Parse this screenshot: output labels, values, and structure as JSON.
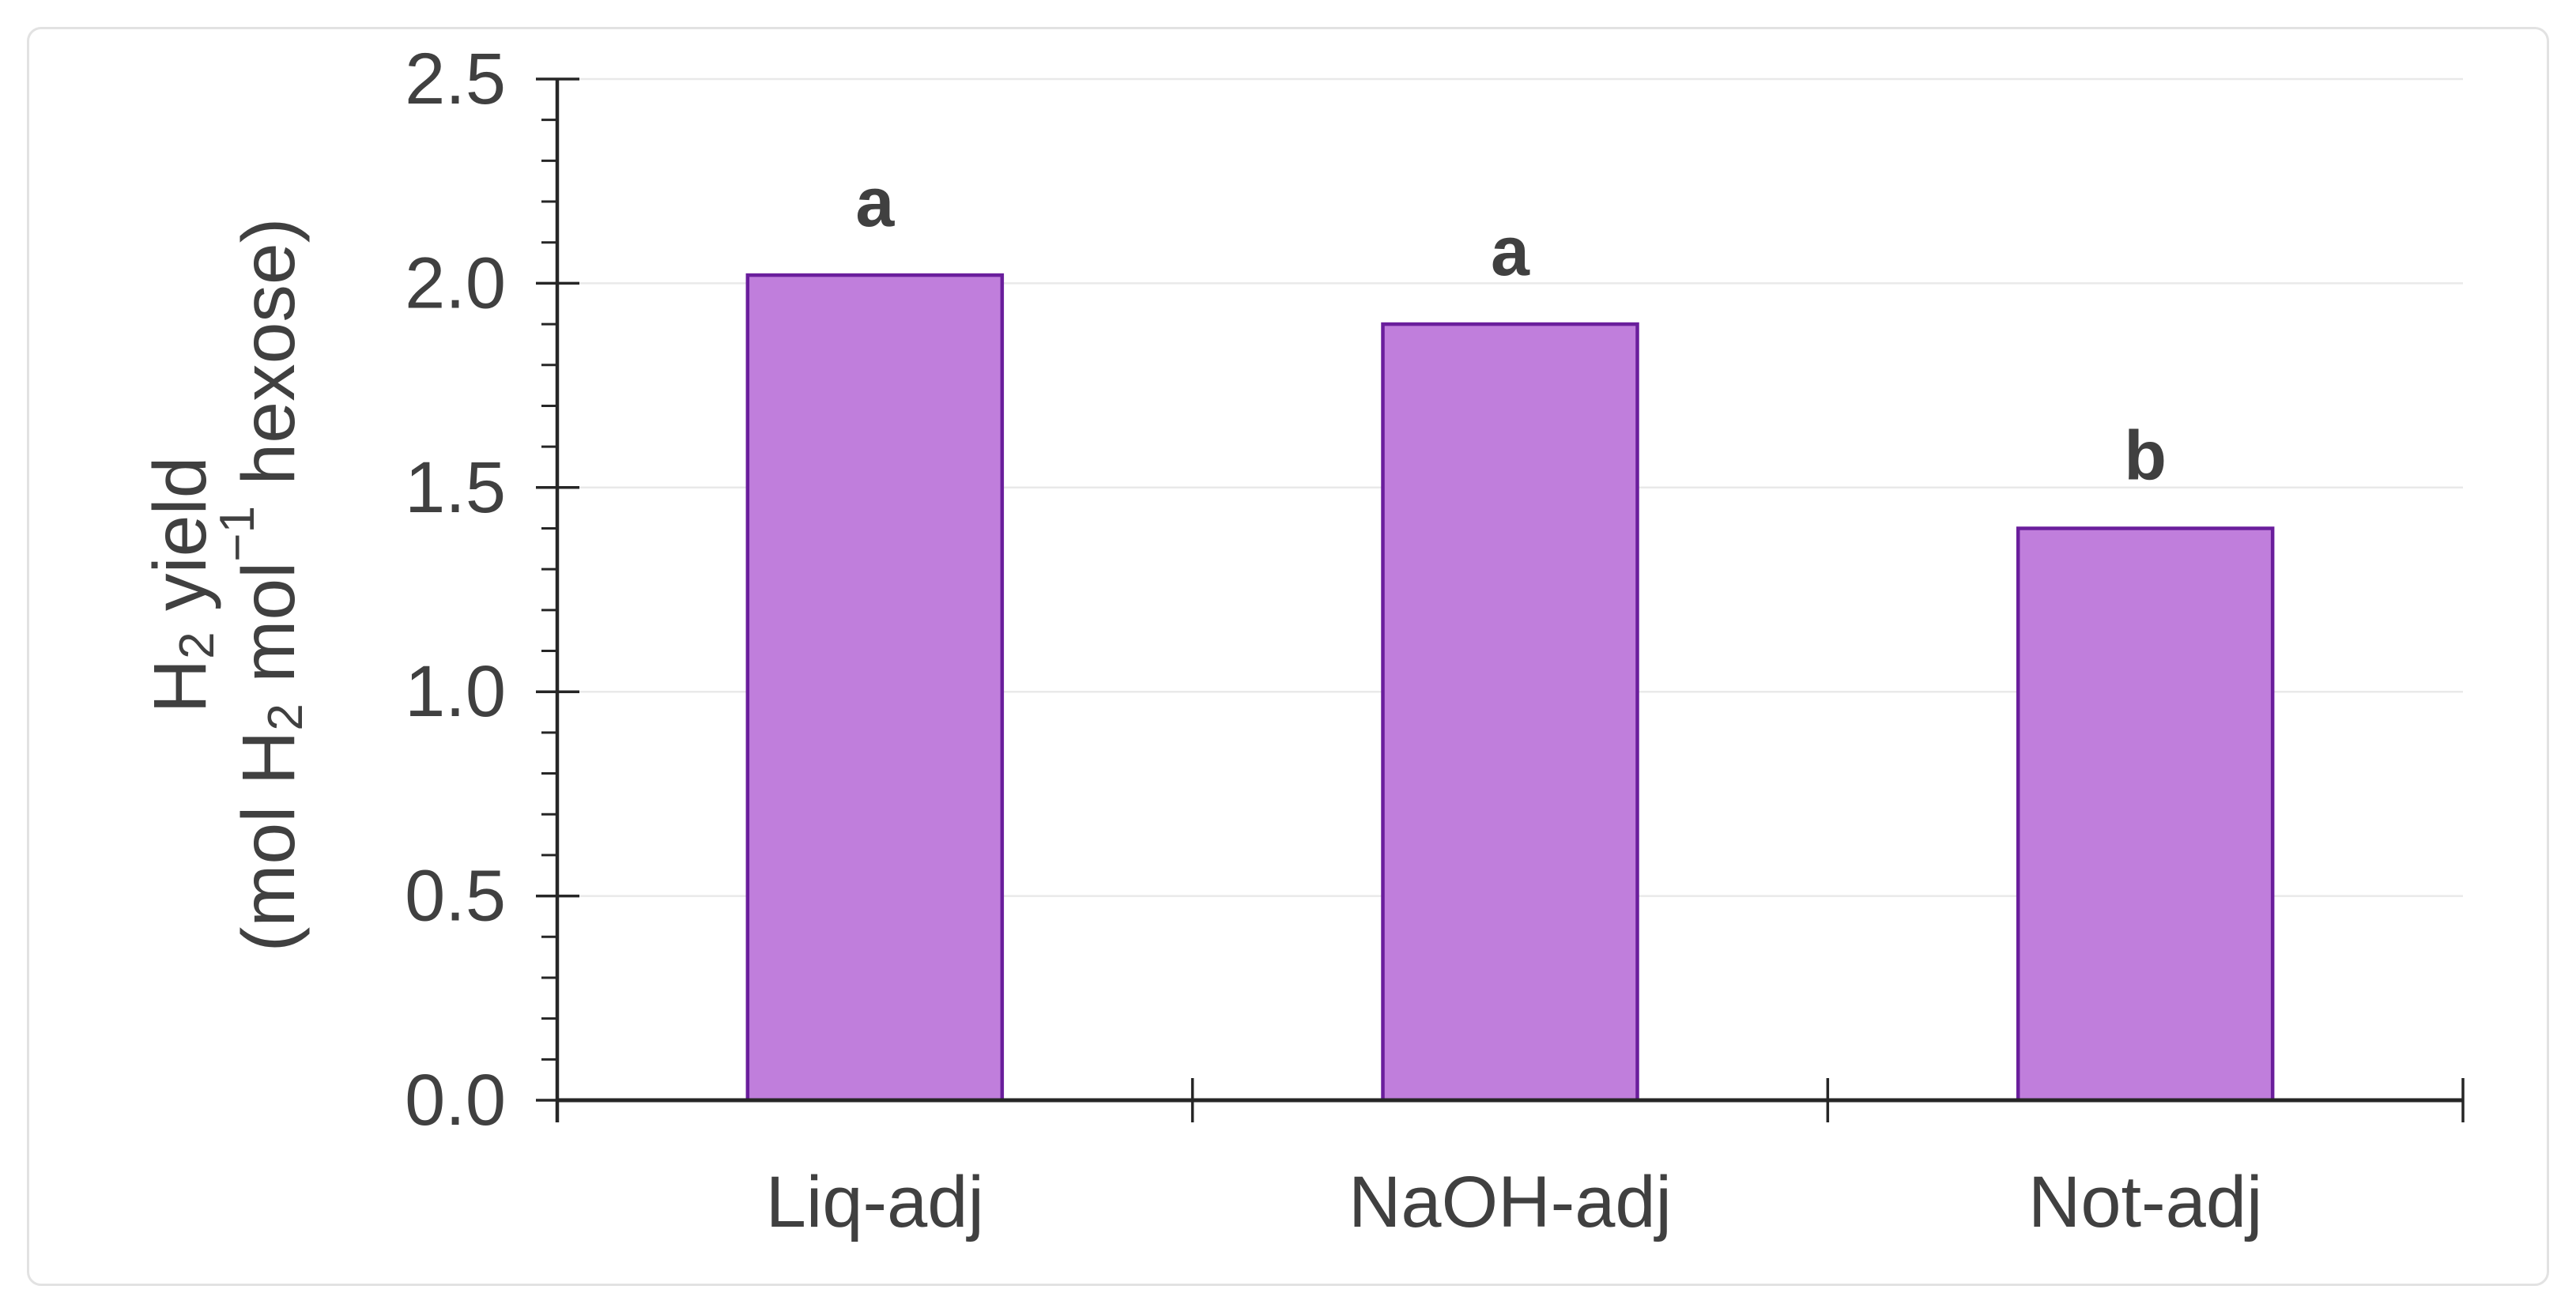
{
  "figure": {
    "card_border_color": "#E2E2E2",
    "background_color": "#FFFFFF"
  },
  "chart_data": {
    "type": "bar",
    "categories": [
      "Liq-adj",
      "NaOH-adj",
      "Not-adj"
    ],
    "values": [
      2.02,
      1.9,
      1.4
    ],
    "bar_labels": [
      "a",
      "a",
      "b"
    ],
    "title": "",
    "xlabel": "",
    "ylabel_line1_runs": [
      {
        "t": "H"
      },
      {
        "t": "2",
        "s": "sub"
      },
      {
        "t": " yield"
      }
    ],
    "ylabel_line2_runs": [
      {
        "t": "(mol H"
      },
      {
        "t": "2",
        "s": "sub"
      },
      {
        "t": " mol"
      },
      {
        "t": "−1",
        "s": "sup"
      },
      {
        "t": " hexose)"
      }
    ],
    "ylabel_plain": "H2 yield (mol H2 mol-1 hexose)",
    "ylim": [
      0.0,
      2.5
    ],
    "yticks": [
      {
        "v": 0.0,
        "label": "0.0"
      },
      {
        "v": 0.5,
        "label": "0.5"
      },
      {
        "v": 1.0,
        "label": "1.0"
      },
      {
        "v": 1.5,
        "label": "1.5"
      },
      {
        "v": 2.0,
        "label": "2.0"
      },
      {
        "v": 2.5,
        "label": "2.5"
      }
    ],
    "minor_tick_step": 0.1,
    "grid": "horizontal-major-only",
    "legend": "none",
    "colors": {
      "bar_fill": "#C07EDC",
      "bar_stroke": "#6A1E9C",
      "gridline": "#E9E9E9",
      "axis": "#262626",
      "tick_text": "#404040",
      "sig_letter_text": "#3D3D3D"
    }
  }
}
